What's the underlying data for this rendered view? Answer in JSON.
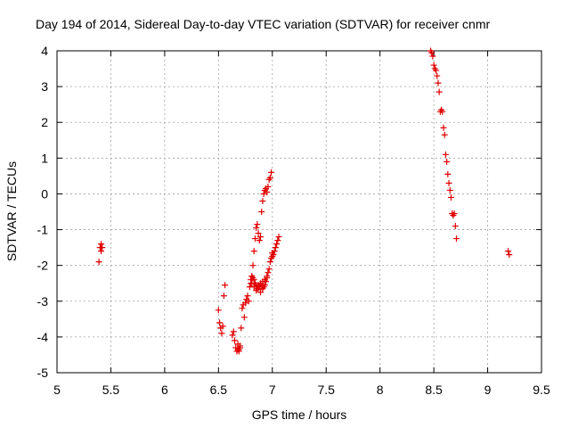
{
  "chart_data": {
    "type": "scatter",
    "title": "Day 194 of 2014, Sidereal Day-to-day VTEC variation (SDTVAR) for receiver cnmr",
    "xlabel": "GPS time / hours",
    "ylabel": "SDTVAR / TECUs",
    "xlim": [
      5,
      9.5
    ],
    "ylim": [
      -5,
      4
    ],
    "xticks": [
      5,
      5.5,
      6,
      6.5,
      7,
      7.5,
      8,
      8.5,
      9,
      9.5
    ],
    "xtick_labels": [
      "5",
      "5.5",
      "6",
      "6.5",
      "7",
      "7.5",
      "8",
      "8.5",
      "9",
      "9.5"
    ],
    "yticks": [
      -5,
      -4,
      -3,
      -2,
      -1,
      0,
      1,
      2,
      3,
      4
    ],
    "ytick_labels": [
      "-5",
      "-4",
      "-3",
      "-2",
      "-1",
      "0",
      "1",
      "2",
      "3",
      "4"
    ],
    "grid": true,
    "marker_color": "#e00000",
    "series": [
      {
        "name": "SDTVAR",
        "x": [
          5.39,
          5.4,
          5.41,
          5.41,
          5.42,
          6.5,
          6.51,
          6.52,
          6.53,
          6.54,
          6.55,
          6.56,
          6.63,
          6.64,
          6.65,
          6.66,
          6.67,
          6.68,
          6.68,
          6.69,
          6.69,
          6.7,
          6.7,
          6.71,
          6.72,
          6.73,
          6.74,
          6.75,
          6.76,
          6.77,
          6.78,
          6.79,
          6.8,
          6.81,
          6.82,
          6.83,
          6.84,
          6.85,
          6.86,
          6.87,
          6.88,
          6.89,
          6.9,
          6.91,
          6.92,
          6.93,
          6.94,
          6.95,
          6.96,
          6.97,
          6.98,
          6.99,
          7.0,
          7.01,
          7.02,
          7.03,
          7.04,
          7.05,
          7.06,
          6.8,
          6.81,
          6.82,
          6.83,
          6.84,
          6.85,
          6.86,
          6.87,
          6.88,
          6.89,
          6.9,
          6.91,
          6.92,
          6.93,
          6.94,
          6.95,
          6.96,
          6.97,
          6.98,
          6.99,
          7.0,
          6.81,
          6.83,
          6.85,
          6.87,
          6.89,
          6.91,
          6.93,
          6.95,
          8.47,
          8.48,
          8.49,
          8.5,
          8.51,
          8.52,
          8.53,
          8.54,
          8.55,
          8.56,
          8.57,
          8.58,
          8.59,
          8.6,
          8.61,
          8.62,
          8.63,
          8.64,
          8.65,
          8.66,
          8.67,
          8.68,
          8.69,
          8.7,
          8.71,
          9.19,
          9.2
        ],
        "y": [
          -1.9,
          -1.5,
          -1.4,
          -1.6,
          -1.5,
          -3.25,
          -3.6,
          -3.75,
          -3.9,
          -3.7,
          -2.85,
          -2.55,
          -3.95,
          -3.85,
          -4.1,
          -4.3,
          -4.4,
          -4.35,
          -4.2,
          -4.4,
          -4.35,
          -4.25,
          -4.3,
          -3.75,
          -3.2,
          -3.1,
          -3.45,
          -3.05,
          -2.95,
          -2.85,
          -3.0,
          -2.6,
          -2.5,
          -2.3,
          -2.0,
          -1.6,
          -1.25,
          -0.95,
          -0.85,
          -1.1,
          -1.3,
          -1.2,
          -0.5,
          -0.2,
          0.0,
          0.1,
          0.15,
          0.05,
          0.2,
          0.4,
          0.45,
          0.6,
          -1.65,
          -1.7,
          -1.6,
          -1.5,
          -1.4,
          -1.3,
          -1.2,
          -2.4,
          -2.5,
          -2.35,
          -2.6,
          -2.5,
          -2.7,
          -2.65,
          -2.55,
          -2.6,
          -2.75,
          -2.6,
          -2.65,
          -2.6,
          -2.55,
          -2.45,
          -2.35,
          -2.2,
          -2.1,
          -1.9,
          -1.8,
          -1.75,
          -2.3,
          -2.4,
          -2.55,
          -2.6,
          -2.5,
          -2.45,
          -2.4,
          -2.3,
          4.0,
          3.95,
          3.85,
          3.6,
          3.5,
          3.45,
          3.3,
          3.1,
          2.85,
          2.3,
          2.35,
          2.3,
          1.85,
          1.65,
          1.1,
          0.9,
          0.55,
          0.3,
          0.1,
          -0.1,
          -0.55,
          -0.6,
          -0.55,
          -0.9,
          -1.25,
          -1.6,
          -1.7
        ]
      }
    ]
  }
}
